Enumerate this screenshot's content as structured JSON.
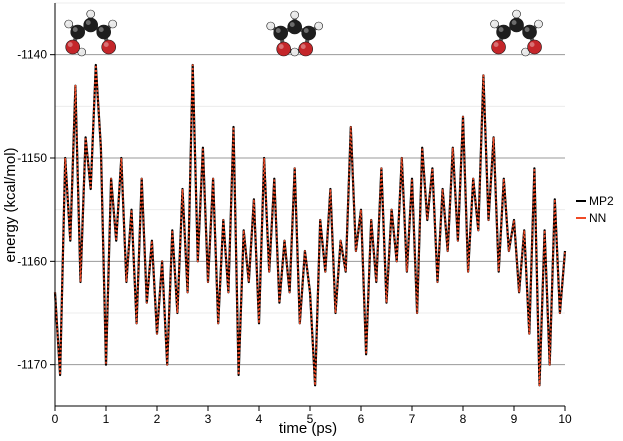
{
  "chart_data": {
    "type": "line",
    "xlabel": "time (ps)",
    "ylabel": "energy (kcal/mol)",
    "xlim": [
      0,
      10
    ],
    "ylim": [
      -1174,
      -1135
    ],
    "xticks": [
      "0",
      "1",
      "2",
      "3",
      "4",
      "5",
      "6",
      "7",
      "8",
      "9",
      "10"
    ],
    "yticks": [
      "-1140",
      "-1150",
      "-1160",
      "-1170"
    ],
    "grid": "horizontal",
    "legend_position": "right",
    "series": [
      {
        "name": "MP2",
        "color": "#000000",
        "x": [
          0,
          0.1,
          0.2,
          0.3,
          0.4,
          0.5,
          0.6,
          0.7,
          0.8,
          0.9,
          1.0,
          1.1,
          1.2,
          1.3,
          1.4,
          1.5,
          1.6,
          1.7,
          1.8,
          1.9,
          2.0,
          2.1,
          2.2,
          2.3,
          2.4,
          2.5,
          2.6,
          2.7,
          2.8,
          2.9,
          3.0,
          3.1,
          3.2,
          3.3,
          3.4,
          3.5,
          3.6,
          3.7,
          3.8,
          3.9,
          4.0,
          4.1,
          4.2,
          4.3,
          4.4,
          4.5,
          4.6,
          4.7,
          4.8,
          4.9,
          5.0,
          5.1,
          5.2,
          5.3,
          5.4,
          5.5,
          5.6,
          5.7,
          5.8,
          5.9,
          6.0,
          6.1,
          6.2,
          6.3,
          6.4,
          6.5,
          6.6,
          6.7,
          6.8,
          6.9,
          7.0,
          7.1,
          7.2,
          7.3,
          7.4,
          7.5,
          7.6,
          7.7,
          7.8,
          7.9,
          8.0,
          8.1,
          8.2,
          8.3,
          8.4,
          8.5,
          8.6,
          8.7,
          8.8,
          8.9,
          9.0,
          9.1,
          9.2,
          9.3,
          9.4,
          9.5,
          9.6,
          9.7,
          9.8,
          9.9,
          10.0
        ],
        "values": [
          -1163,
          -1171,
          -1150,
          -1158,
          -1143,
          -1162,
          -1148,
          -1153,
          -1141,
          -1149,
          -1170,
          -1152,
          -1158,
          -1150,
          -1162,
          -1155,
          -1166,
          -1152,
          -1164,
          -1158,
          -1167,
          -1160,
          -1170,
          -1157,
          -1165,
          -1153,
          -1163,
          -1141,
          -1160,
          -1149,
          -1162,
          -1152,
          -1166,
          -1156,
          -1163,
          -1147,
          -1171,
          -1157,
          -1162,
          -1154,
          -1166,
          -1150,
          -1161,
          -1152,
          -1164,
          -1158,
          -1163,
          -1151,
          -1166,
          -1159,
          -1163,
          -1172,
          -1156,
          -1161,
          -1153,
          -1165,
          -1158,
          -1161,
          -1147,
          -1159,
          -1155,
          -1169,
          -1156,
          -1162,
          -1151,
          -1164,
          -1155,
          -1160,
          -1150,
          -1161,
          -1152,
          -1165,
          -1149,
          -1156,
          -1151,
          -1162,
          -1153,
          -1159,
          -1149,
          -1158,
          -1146,
          -1161,
          -1152,
          -1157,
          -1142,
          -1156,
          -1148,
          -1161,
          -1152,
          -1159,
          -1156,
          -1163,
          -1157,
          -1167,
          -1151,
          -1172,
          -1157,
          -1170,
          -1154,
          -1165,
          -1159
        ]
      },
      {
        "name": "NN",
        "color": "#f04a26",
        "x": [
          0,
          0.1,
          0.2,
          0.3,
          0.4,
          0.5,
          0.6,
          0.7,
          0.8,
          0.9,
          1.0,
          1.1,
          1.2,
          1.3,
          1.4,
          1.5,
          1.6,
          1.7,
          1.8,
          1.9,
          2.0,
          2.1,
          2.2,
          2.3,
          2.4,
          2.5,
          2.6,
          2.7,
          2.8,
          2.9,
          3.0,
          3.1,
          3.2,
          3.3,
          3.4,
          3.5,
          3.6,
          3.7,
          3.8,
          3.9,
          4.0,
          4.1,
          4.2,
          4.3,
          4.4,
          4.5,
          4.6,
          4.7,
          4.8,
          4.9,
          5.0,
          5.1,
          5.2,
          5.3,
          5.4,
          5.5,
          5.6,
          5.7,
          5.8,
          5.9,
          6.0,
          6.1,
          6.2,
          6.3,
          6.4,
          6.5,
          6.6,
          6.7,
          6.8,
          6.9,
          7.0,
          7.1,
          7.2,
          7.3,
          7.4,
          7.5,
          7.6,
          7.7,
          7.8,
          7.9,
          8.0,
          8.1,
          8.2,
          8.3,
          8.4,
          8.5,
          8.6,
          8.7,
          8.8,
          8.9,
          9.0,
          9.1,
          9.2,
          9.3,
          9.4,
          9.5,
          9.6,
          9.7,
          9.8,
          9.9,
          10.0
        ],
        "values": [
          -1163,
          -1171,
          -1150,
          -1158,
          -1143,
          -1162,
          -1148,
          -1153,
          -1141,
          -1149,
          -1170,
          -1152,
          -1158,
          -1150,
          -1162,
          -1155,
          -1166,
          -1152,
          -1164,
          -1158,
          -1167,
          -1160,
          -1170,
          -1157,
          -1165,
          -1153,
          -1163,
          -1141,
          -1160,
          -1149,
          -1162,
          -1152,
          -1166,
          -1156,
          -1163,
          -1147,
          -1171,
          -1157,
          -1162,
          -1154,
          -1166,
          -1150,
          -1161,
          -1152,
          -1164,
          -1158,
          -1163,
          -1151,
          -1166,
          -1159,
          -1163,
          -1172,
          -1156,
          -1161,
          -1153,
          -1165,
          -1158,
          -1161,
          -1147,
          -1159,
          -1155,
          -1169,
          -1156,
          -1162,
          -1151,
          -1164,
          -1155,
          -1160,
          -1150,
          -1161,
          -1152,
          -1165,
          -1149,
          -1156,
          -1151,
          -1162,
          -1153,
          -1159,
          -1149,
          -1158,
          -1146,
          -1161,
          -1152,
          -1157,
          -1142,
          -1156,
          -1148,
          -1161,
          -1152,
          -1159,
          -1156,
          -1163,
          -1157,
          -1167,
          -1151,
          -1172,
          -1157,
          -1170,
          -1154,
          -1165,
          -1159
        ]
      }
    ],
    "molecule_images": [
      {
        "name": "open-chain-molecule-left",
        "x_pos": 0.7
      },
      {
        "name": "cyclic-molecule-center",
        "x_pos": 4.7
      },
      {
        "name": "open-chain-molecule-right",
        "x_pos": 9.05
      }
    ]
  }
}
